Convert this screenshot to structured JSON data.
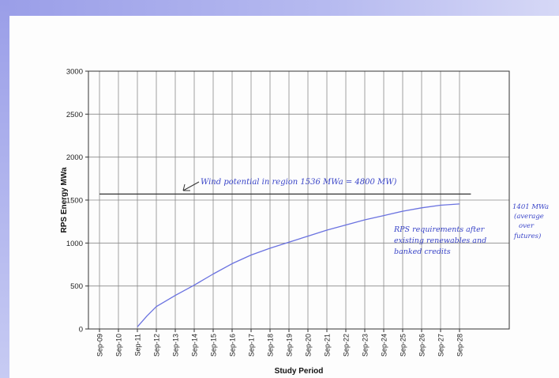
{
  "chart_data": {
    "type": "line",
    "xlabel": "Study Period",
    "ylabel": "RPS Energy MWa",
    "categories": [
      "Sep-09",
      "Sep-10",
      "Sep-11",
      "Sep-12",
      "Sep-13",
      "Sep-14",
      "Sep-15",
      "Sep-16",
      "Sep-17",
      "Sep-18",
      "Sep-19",
      "Sep-20",
      "Sep-21",
      "Sep-22",
      "Sep-23",
      "Sep-24",
      "Sep-25",
      "Sep-26",
      "Sep-27",
      "Sep-28"
    ],
    "ylim": [
      0,
      3000
    ],
    "yticks": [
      0,
      500,
      1000,
      1500,
      2000,
      2500,
      3000
    ],
    "grid": true,
    "series": [
      {
        "points": [
          [
            2.0,
            25
          ],
          [
            2.5,
            150
          ],
          [
            3,
            260
          ],
          [
            4,
            390
          ],
          [
            5,
            510
          ],
          [
            6,
            640
          ],
          [
            7,
            760
          ],
          [
            8,
            860
          ],
          [
            9,
            940
          ],
          [
            10,
            1010
          ],
          [
            11,
            1080
          ],
          [
            12,
            1150
          ],
          [
            13,
            1210
          ],
          [
            14,
            1270
          ],
          [
            15,
            1320
          ],
          [
            16,
            1370
          ],
          [
            17,
            1410
          ],
          [
            18,
            1440
          ],
          [
            19,
            1455
          ]
        ],
        "color": "#6a72e0"
      },
      {
        "points": [
          [
            0,
            1570
          ],
          [
            19.6,
            1570
          ]
        ],
        "color": "#333333"
      }
    ],
    "annotations": {
      "wind": "Wind potential in region 1536 MWa = 4800 MW)",
      "rps_line1": "RPS requirements after",
      "rps_line2": "existing renewables and",
      "rps_line3": "banked credits",
      "avg_line1": "1401 MWa",
      "avg_line2": "(average",
      "avg_line3": "over",
      "avg_line4": "futures)"
    }
  }
}
